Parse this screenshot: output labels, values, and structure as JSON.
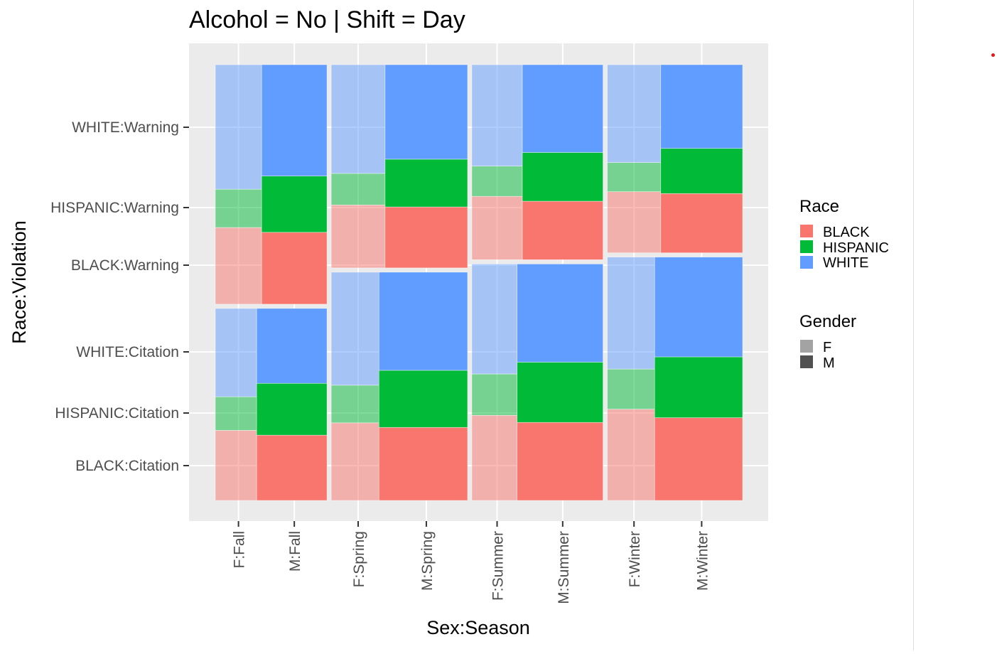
{
  "chart_data": {
    "type": "mosaic",
    "title": "Alcohol = No | Shift = Day",
    "xlabel": "Sex:Season",
    "ylabel": "Race:Violation",
    "x_tick_labels": [
      "F:Fall",
      "M:Fall",
      "F:Spring",
      "M:Spring",
      "F:Summer",
      "M:Summer",
      "F:Winter",
      "M:Winter"
    ],
    "y_tick_labels": [
      "BLACK:Citation",
      "HISPANIC:Citation",
      "WHITE:Citation",
      "BLACK:Warning",
      "HISPANIC:Warning",
      "WHITE:Warning"
    ],
    "legend_race": {
      "title": "Race",
      "items": [
        {
          "label": "BLACK",
          "color": "#F8766D"
        },
        {
          "label": "HISPANIC",
          "color": "#00BA38"
        },
        {
          "label": "WHITE",
          "color": "#619CFF"
        }
      ]
    },
    "legend_gender": {
      "title": "Gender",
      "items": [
        {
          "label": "F",
          "alpha": 0.5
        },
        {
          "label": "M",
          "alpha": 1.0
        }
      ]
    },
    "season_widths": {
      "Fall": 0.217,
      "Spring": 0.265,
      "Summer": 0.255,
      "Winter": 0.263
    },
    "violation_split": {
      "Fall": 0.555,
      "Spring": 0.471,
      "Summer": 0.452,
      "Winter": 0.436
    },
    "cells": [
      {
        "season": "Fall",
        "violation": "Warning",
        "female_share": 0.415,
        "F": {
          "BLACK": 0.32,
          "HISPANIC": 0.16,
          "WHITE": 0.52
        },
        "M": {
          "BLACK": 0.3,
          "HISPANIC": 0.235,
          "WHITE": 0.465
        }
      },
      {
        "season": "Fall",
        "violation": "Citation",
        "female_share": 0.37,
        "F": {
          "BLACK": 0.365,
          "HISPANIC": 0.175,
          "WHITE": 0.46
        },
        "M": {
          "BLACK": 0.34,
          "HISPANIC": 0.27,
          "WHITE": 0.39
        }
      },
      {
        "season": "Spring",
        "violation": "Warning",
        "female_share": 0.395,
        "F": {
          "BLACK": 0.31,
          "HISPANIC": 0.155,
          "WHITE": 0.535
        },
        "M": {
          "BLACK": 0.3,
          "HISPANIC": 0.235,
          "WHITE": 0.465
        }
      },
      {
        "season": "Spring",
        "violation": "Citation",
        "female_share": 0.35,
        "F": {
          "BLACK": 0.34,
          "HISPANIC": 0.165,
          "WHITE": 0.495
        },
        "M": {
          "BLACK": 0.32,
          "HISPANIC": 0.25,
          "WHITE": 0.43
        }
      },
      {
        "season": "Summer",
        "violation": "Warning",
        "female_share": 0.385,
        "F": {
          "BLACK": 0.325,
          "HISPANIC": 0.155,
          "WHITE": 0.52
        },
        "M": {
          "BLACK": 0.3,
          "HISPANIC": 0.25,
          "WHITE": 0.45
        }
      },
      {
        "season": "Summer",
        "violation": "Citation",
        "female_share": 0.345,
        "F": {
          "BLACK": 0.36,
          "HISPANIC": 0.175,
          "WHITE": 0.465
        },
        "M": {
          "BLACK": 0.33,
          "HISPANIC": 0.255,
          "WHITE": 0.415
        }
      },
      {
        "season": "Winter",
        "violation": "Warning",
        "female_share": 0.395,
        "F": {
          "BLACK": 0.325,
          "HISPANIC": 0.155,
          "WHITE": 0.52
        },
        "M": {
          "BLACK": 0.315,
          "HISPANIC": 0.24,
          "WHITE": 0.445
        }
      },
      {
        "season": "Winter",
        "violation": "Citation",
        "female_share": 0.35,
        "F": {
          "BLACK": 0.375,
          "HISPANIC": 0.165,
          "WHITE": 0.46
        },
        "M": {
          "BLACK": 0.34,
          "HISPANIC": 0.25,
          "WHITE": 0.41
        }
      }
    ]
  }
}
